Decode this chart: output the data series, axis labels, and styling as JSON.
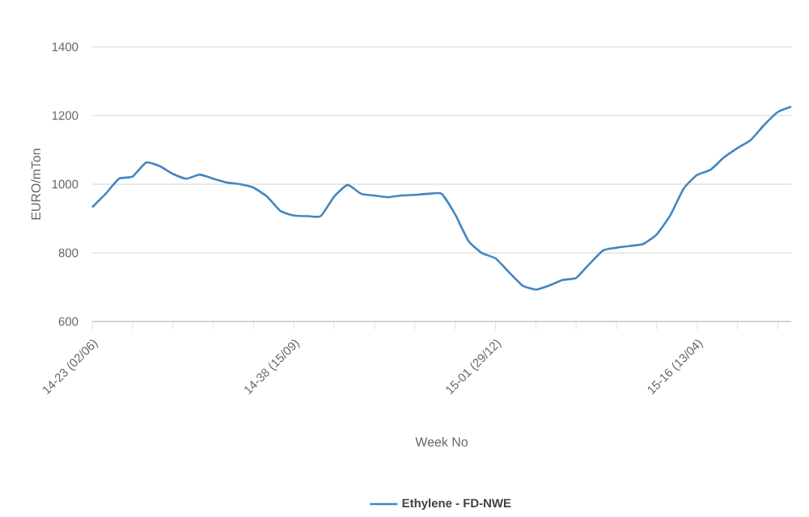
{
  "chart_data": {
    "type": "line",
    "xlabel": "Week No",
    "ylabel": "EURO/mTon",
    "categories": [
      "14-23 (02/06)",
      null,
      null,
      null,
      null,
      null,
      null,
      null,
      null,
      null,
      null,
      null,
      null,
      null,
      null,
      "14-38 (15/09)",
      null,
      null,
      null,
      null,
      null,
      null,
      null,
      null,
      null,
      null,
      null,
      null,
      null,
      null,
      "15-01 (29/12)",
      null,
      null,
      null,
      null,
      null,
      null,
      null,
      null,
      null,
      null,
      null,
      null,
      null,
      null,
      "15-16 (13/04)",
      null,
      null,
      null,
      null,
      null,
      null,
      null
    ],
    "series": [
      {
        "name": "Ethylene - FD-NWE",
        "color": "#4286c3",
        "values": [
          933,
          972,
          1016,
          1022,
          1063,
          1053,
          1030,
          1016,
          1028,
          1016,
          1005,
          1000,
          990,
          964,
          922,
          909,
          907,
          907,
          964,
          998,
          972,
          967,
          962,
          967,
          969,
          972,
          972,
          912,
          834,
          799,
          784,
          744,
          705,
          693,
          705,
          721,
          727,
          768,
          807,
          815,
          820,
          826,
          854,
          909,
          987,
          1027,
          1042,
          1078,
          1105,
          1129,
          1173,
          1210,
          1226
        ]
      }
    ],
    "ylim": [
      600,
      1400
    ],
    "yticks": [
      600,
      800,
      1000,
      1200,
      1400
    ],
    "grid": "y",
    "legend": "bottom"
  }
}
